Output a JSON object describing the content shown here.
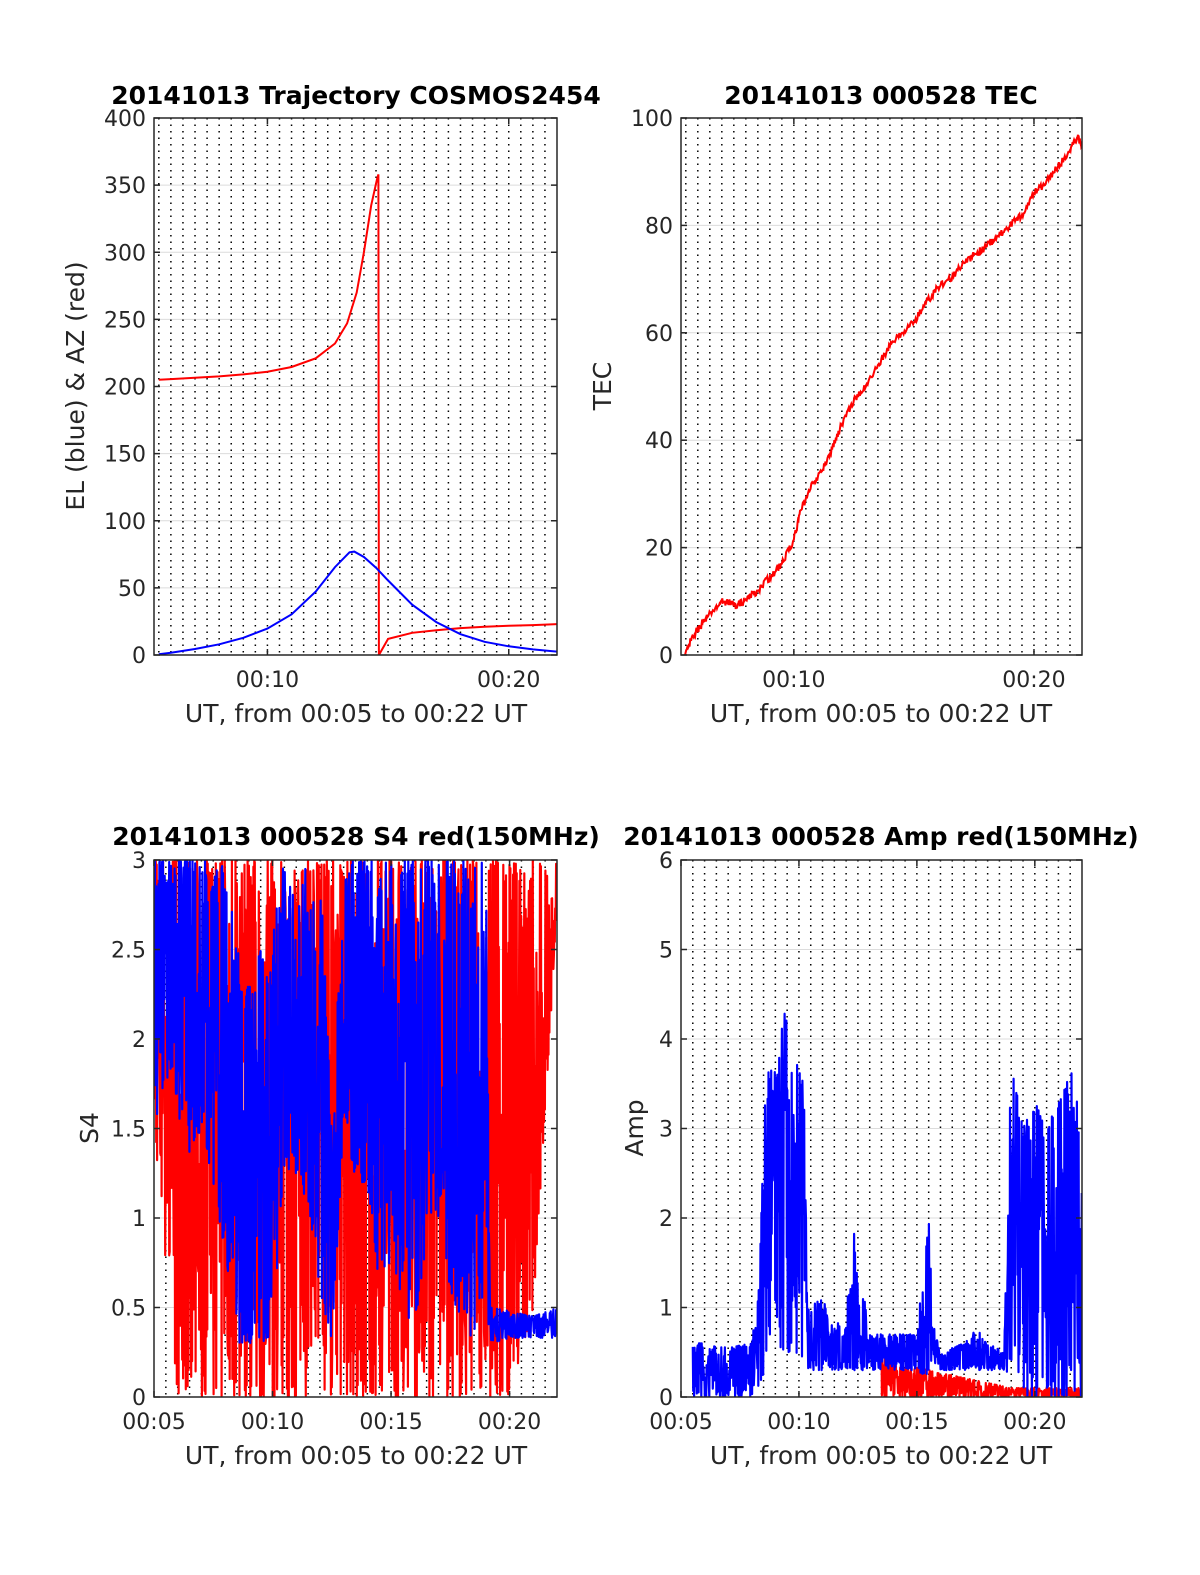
{
  "chart_data": [
    {
      "type": "line",
      "title": "20141013 Trajectory COSMOS2454",
      "xlabel": "UT, from 00:05 to 00:22 UT",
      "ylabel": "EL (blue) & AZ (red)",
      "x_unit": "minutes after 00:00 UT",
      "xlim": [
        5.3,
        22.0
      ],
      "ylim": [
        0,
        400
      ],
      "xticks": [
        10,
        20
      ],
      "xticklabels": [
        "00:10",
        "00:20"
      ],
      "yticks": [
        0,
        50,
        100,
        150,
        200,
        250,
        300,
        350,
        400
      ],
      "grid": "dotted vertical every 0.5 min; horizontal at y ticks",
      "series": [
        {
          "color": "#ff0000",
          "points": [
            [
              5.5,
              205
            ],
            [
              6.0,
              205.5
            ],
            [
              7.0,
              206.5
            ],
            [
              8.0,
              207.5
            ],
            [
              9.0,
              209
            ],
            [
              10.0,
              211
            ],
            [
              11.0,
              214.5
            ],
            [
              12.0,
              221
            ],
            [
              12.8,
              232
            ],
            [
              13.3,
              247
            ],
            [
              13.7,
              270
            ],
            [
              14.0,
              300
            ],
            [
              14.3,
              335
            ],
            [
              14.55,
              355
            ],
            [
              14.6,
              358
            ],
            [
              14.62,
              0
            ],
            [
              15.0,
              12
            ],
            [
              16.0,
              16.5
            ],
            [
              17.0,
              18.5
            ],
            [
              18.0,
              20
            ],
            [
              19.0,
              21
            ],
            [
              20.0,
              21.8
            ],
            [
              21.0,
              22.3
            ],
            [
              22.0,
              23
            ]
          ]
        },
        {
          "color": "#0000ff",
          "points": [
            [
              5.5,
              0.5
            ],
            [
              6.0,
              1.7
            ],
            [
              7.0,
              4.5
            ],
            [
              8.0,
              8.0
            ],
            [
              9.0,
              12.8
            ],
            [
              10.0,
              19.7
            ],
            [
              11.0,
              30.3
            ],
            [
              12.0,
              47.2
            ],
            [
              12.8,
              65.5
            ],
            [
              13.4,
              76.5
            ],
            [
              13.6,
              77
            ],
            [
              14.0,
              73
            ],
            [
              14.5,
              65
            ],
            [
              15.0,
              55.5
            ],
            [
              16.0,
              37.5
            ],
            [
              17.0,
              24.5
            ],
            [
              18.0,
              15.5
            ],
            [
              19.0,
              9.8
            ],
            [
              20.0,
              6.5
            ],
            [
              21.0,
              4.2
            ],
            [
              22.0,
              2.5
            ]
          ]
        }
      ]
    },
    {
      "type": "line",
      "title": "20141013 000528 TEC",
      "xlabel": "UT, from 00:05 to 00:22 UT",
      "ylabel": "TEC",
      "x_unit": "minutes after 00:00 UT",
      "xlim": [
        5.3,
        22.0
      ],
      "ylim": [
        0,
        100
      ],
      "xticks": [
        10,
        20
      ],
      "xticklabels": [
        "00:10",
        "00:20"
      ],
      "yticks": [
        0,
        20,
        40,
        60,
        80,
        100
      ],
      "grid": "dotted vertical every 0.5 min; horizontal at y ticks",
      "series": [
        {
          "color": "#ff0000",
          "points": [
            [
              5.47,
              0
            ],
            [
              5.8,
              3.5
            ],
            [
              6.2,
              6
            ],
            [
              6.6,
              8
            ],
            [
              7.0,
              10
            ],
            [
              7.3,
              9.8
            ],
            [
              7.6,
              9.2
            ],
            [
              8.0,
              10.3
            ],
            [
              8.5,
              12
            ],
            [
              9.0,
              14.5
            ],
            [
              9.5,
              17
            ],
            [
              10.0,
              21.5
            ],
            [
              10.3,
              27
            ],
            [
              10.8,
              32
            ],
            [
              11.2,
              34.5
            ],
            [
              11.6,
              38.5
            ],
            [
              12.0,
              43
            ],
            [
              12.5,
              47.5
            ],
            [
              13.0,
              50
            ],
            [
              13.5,
              54
            ],
            [
              14.0,
              57.5
            ],
            [
              14.5,
              60
            ],
            [
              15.0,
              62
            ],
            [
              15.5,
              65.5
            ],
            [
              16.0,
              68.5
            ],
            [
              16.5,
              70
            ],
            [
              17.0,
              72.5
            ],
            [
              17.5,
              74.5
            ],
            [
              18.0,
              76
            ],
            [
              18.5,
              78
            ],
            [
              19.0,
              80
            ],
            [
              19.5,
              82
            ],
            [
              20.0,
              86
            ],
            [
              20.5,
              88
            ],
            [
              21.0,
              91
            ],
            [
              21.5,
              94
            ],
            [
              21.8,
              96.5
            ],
            [
              22.0,
              95
            ]
          ]
        }
      ]
    },
    {
      "type": "line",
      "title": "20141013 000528 S4 red(150MHz)",
      "xlabel": "UT, from 00:05 to 00:22 UT",
      "ylabel": "S4",
      "x_unit": "minutes after 00:00 UT",
      "xlim": [
        5.0,
        22.0
      ],
      "ylim": [
        0,
        3
      ],
      "xticks": [
        5,
        10,
        15,
        20
      ],
      "xticklabels": [
        "00:05",
        "00:10",
        "00:15",
        "00:20"
      ],
      "yticks": [
        0,
        0.5,
        1,
        1.5,
        2,
        2.5,
        3
      ],
      "grid": "dotted vertical every 0.5 min; horizontal at y ticks",
      "series": [
        {
          "color": "#ff0000",
          "style": "noisy spikes between 0 and 3",
          "envelope": [
            [
              5.0,
              1.5,
              3
            ],
            [
              6.0,
              0,
              3
            ],
            [
              7.0,
              0,
              3
            ],
            [
              8.0,
              0,
              3
            ],
            [
              9.0,
              0,
              3
            ],
            [
              10.0,
              0,
              3
            ],
            [
              11.0,
              0,
              3
            ],
            [
              12.0,
              0,
              3
            ],
            [
              13.0,
              0,
              3
            ],
            [
              14.0,
              0,
              3
            ],
            [
              15.0,
              0,
              3
            ],
            [
              16.0,
              0,
              3
            ],
            [
              17.0,
              0,
              3
            ],
            [
              18.0,
              0,
              3
            ],
            [
              19.0,
              0,
              3
            ],
            [
              20.0,
              0,
              3
            ],
            [
              21.0,
              0.5,
              3
            ],
            [
              22.0,
              2.7,
              3
            ]
          ]
        },
        {
          "color": "#0000ff",
          "style": "noisy band",
          "envelope": [
            [
              5.0,
              1.5,
              3
            ],
            [
              5.5,
              1.8,
              3
            ],
            [
              6.0,
              1.6,
              3
            ],
            [
              6.5,
              1.3,
              3
            ],
            [
              7.0,
              1.5,
              3
            ],
            [
              7.5,
              1.2,
              3
            ],
            [
              8.0,
              0.8,
              3
            ],
            [
              8.5,
              0.3,
              2.5
            ],
            [
              9.0,
              0.3,
              2.3
            ],
            [
              9.5,
              0.3,
              2.5
            ],
            [
              10.0,
              0.35,
              2.6
            ],
            [
              10.5,
              1.3,
              3
            ],
            [
              11.0,
              1.2,
              2.8
            ],
            [
              11.5,
              1.1,
              3
            ],
            [
              12.0,
              0.6,
              3
            ],
            [
              12.5,
              0.3,
              1.5
            ],
            [
              13.0,
              1.5,
              3
            ],
            [
              13.5,
              1.2,
              3
            ],
            [
              14.0,
              1.2,
              3
            ],
            [
              14.5,
              0.6,
              3
            ],
            [
              15.0,
              0.7,
              3
            ],
            [
              15.5,
              0.4,
              3
            ],
            [
              16.0,
              0.3,
              3
            ],
            [
              16.5,
              0.9,
              3
            ],
            [
              17.0,
              1.0,
              3
            ],
            [
              17.5,
              0.6,
              3
            ],
            [
              18.0,
              0.4,
              3
            ],
            [
              18.5,
              0.3,
              3
            ],
            [
              19.0,
              0.5,
              3
            ],
            [
              19.2,
              0.3,
              0.5
            ],
            [
              20.0,
              0.33,
              0.48
            ],
            [
              21.0,
              0.33,
              0.45
            ],
            [
              22.0,
              0.33,
              0.5
            ]
          ]
        }
      ]
    },
    {
      "type": "line",
      "title": "20141013 000528 Amp red(150MHz)",
      "xlabel": "UT, from 00:05 to 00:22 UT",
      "ylabel": "Amp",
      "x_unit": "minutes after 00:00 UT",
      "xlim": [
        5.0,
        22.0
      ],
      "ylim": [
        0,
        6
      ],
      "xticks": [
        5,
        10,
        15,
        20
      ],
      "xticklabels": [
        "00:05",
        "00:10",
        "00:15",
        "00:20"
      ],
      "yticks": [
        0,
        1,
        2,
        3,
        4,
        5,
        6
      ],
      "grid": "dotted vertical every 0.5 min; horizontal at y ticks",
      "series": [
        {
          "color": "#ff0000",
          "style": "low noise",
          "envelope": [
            [
              13.5,
              0,
              0.7
            ],
            [
              13.7,
              0,
              0.4
            ],
            [
              19.0,
              0,
              0.1
            ],
            [
              20.0,
              0,
              0.1
            ],
            [
              21.0,
              0,
              0.1
            ],
            [
              22.0,
              0,
              0.1
            ]
          ]
        },
        {
          "color": "#0000ff",
          "style": "noisy band",
          "envelope": [
            [
              5.5,
              0,
              0.6
            ],
            [
              6.0,
              0,
              0.6
            ],
            [
              7.0,
              0,
              0.55
            ],
            [
              8.0,
              0,
              0.6
            ],
            [
              8.3,
              0,
              1.3
            ],
            [
              8.6,
              0.4,
              3.6
            ],
            [
              9.0,
              0.6,
              3.7
            ],
            [
              9.4,
              0.5,
              4.3
            ],
            [
              9.8,
              0.5,
              3.8
            ],
            [
              10.2,
              0.4,
              3.5
            ],
            [
              10.4,
              0.3,
              1.0
            ],
            [
              11.0,
              0.3,
              1.1
            ],
            [
              11.5,
              0.3,
              0.8
            ],
            [
              12.0,
              0.3,
              0.9
            ],
            [
              12.3,
              0.3,
              1.9
            ],
            [
              12.6,
              0.3,
              1.4
            ],
            [
              13.0,
              0.3,
              0.7
            ],
            [
              14.0,
              0.3,
              0.7
            ],
            [
              15.0,
              0.3,
              0.7
            ],
            [
              15.5,
              0.2,
              2.0
            ],
            [
              15.7,
              0.3,
              0.8
            ],
            [
              16.0,
              0.3,
              0.5
            ],
            [
              17.0,
              0.3,
              0.6
            ],
            [
              17.5,
              0.3,
              0.8
            ],
            [
              18.0,
              0.3,
              0.6
            ],
            [
              18.7,
              0.3,
              0.5
            ],
            [
              19.0,
              0.2,
              3.8
            ],
            [
              19.5,
              0,
              3.0
            ],
            [
              20.0,
              0,
              3.3
            ],
            [
              20.5,
              0,
              3.0
            ],
            [
              21.0,
              0,
              3.3
            ],
            [
              21.5,
              0,
              3.7
            ],
            [
              22.0,
              0,
              3.0
            ]
          ]
        }
      ]
    }
  ]
}
